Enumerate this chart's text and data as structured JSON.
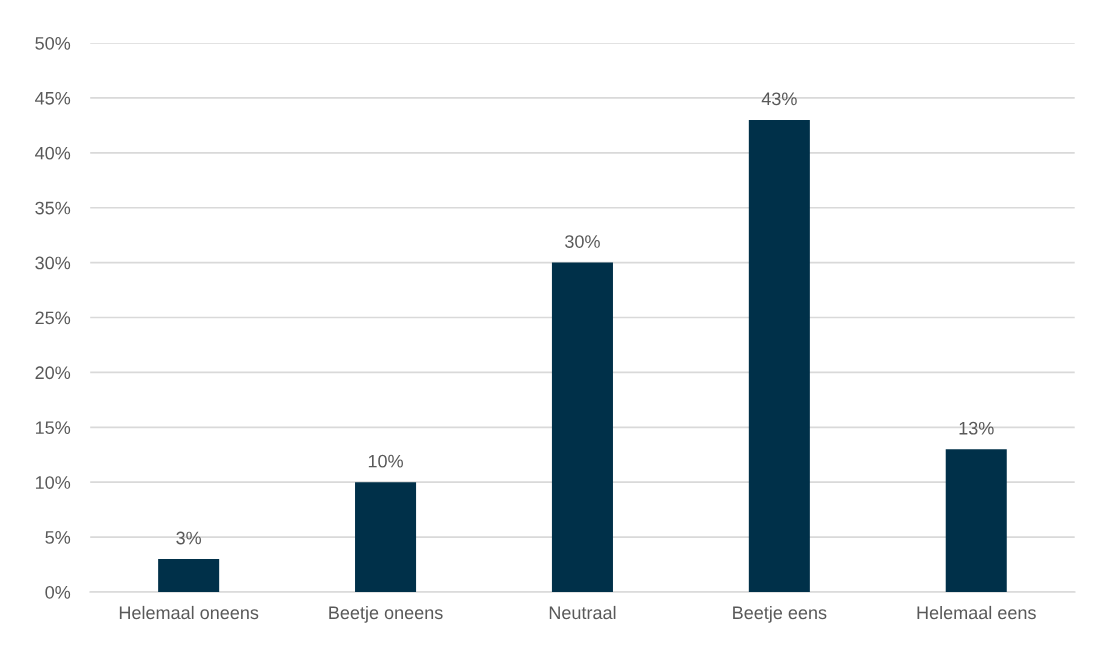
{
  "chart_data": {
    "type": "bar",
    "categories": [
      "Helemaal oneens",
      "Beetje oneens",
      "Neutraal",
      "Beetje eens",
      "Helemaal eens"
    ],
    "values": [
      3,
      10,
      30,
      43,
      13
    ],
    "color": "#003049",
    "value_labels": [
      "3%",
      "10%",
      "30%",
      "43%",
      "13%"
    ],
    "ylim": [
      0,
      50
    ],
    "yticks": [
      {
        "value": 0,
        "label": "0%"
      },
      {
        "value": 5,
        "label": "5%"
      },
      {
        "value": 10,
        "label": "10%"
      },
      {
        "value": 15,
        "label": "15%"
      },
      {
        "value": 20,
        "label": "20%"
      },
      {
        "value": 25,
        "label": "25%"
      },
      {
        "value": 30,
        "label": "30%"
      },
      {
        "value": 35,
        "label": "35%"
      },
      {
        "value": 40,
        "label": "40%"
      },
      {
        "value": 45,
        "label": "45%"
      },
      {
        "value": 50,
        "label": "50%"
      }
    ],
    "grid": "y"
  }
}
